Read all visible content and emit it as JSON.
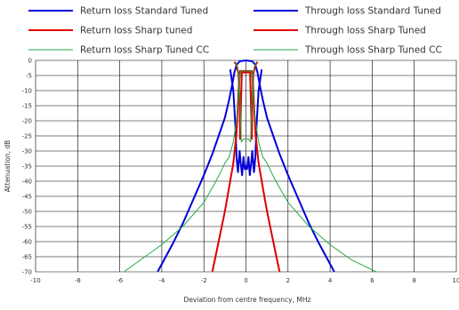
{
  "chart_data": {
    "type": "line",
    "xlabel": "Deviation from centre frequency, MHz",
    "ylabel": "Attenuation, dB",
    "xlim": [
      -10,
      10
    ],
    "ylim": [
      -70,
      0
    ],
    "xticks": [
      -10,
      -8,
      -6,
      -4,
      -2,
      0,
      2,
      4,
      6,
      8,
      10
    ],
    "xtick_labels": [
      "-10",
      "-8",
      "-6",
      "-4",
      "-2",
      "0",
      "2",
      "4",
      "6",
      "8",
      "10"
    ],
    "yticks": [
      0,
      -5,
      -10,
      -15,
      -20,
      -25,
      -30,
      -35,
      -40,
      -45,
      -50,
      -55,
      -60,
      -65,
      -70
    ],
    "ytick_labels": [
      "0",
      "-5",
      "-10",
      "-15",
      "-20",
      "-25",
      "-30",
      "-35",
      "-40",
      "-45",
      "-50",
      "-55",
      "-60",
      "-65",
      "-70"
    ],
    "grid": true,
    "legend_position": "top",
    "series": [
      {
        "name": "Return loss Standard Tuned",
        "color": "#0000dd",
        "width": 2,
        "x": [
          -0.75,
          -0.6,
          -0.5,
          -0.45,
          -0.38,
          -0.3,
          -0.25,
          -0.18,
          -0.12,
          -0.05,
          0,
          0.05,
          0.12,
          0.18,
          0.25,
          0.3,
          0.38,
          0.45,
          0.5,
          0.6,
          0.75
        ],
        "y": [
          -3,
          -10,
          -22,
          -32,
          -37,
          -30,
          -34,
          -38,
          -32,
          -36,
          -35,
          -36,
          -32,
          -38,
          -34,
          -30,
          -37,
          -32,
          -22,
          -10,
          -3
        ]
      },
      {
        "name": "Through loss Standard Tuned",
        "color": "#0000dd",
        "width": 2,
        "x": [
          -4.2,
          -3.5,
          -3,
          -2.5,
          -2,
          -1.6,
          -1.3,
          -1,
          -0.8,
          -0.65,
          -0.55,
          -0.45,
          -0.3,
          0,
          0.3,
          0.45,
          0.55,
          0.65,
          0.8,
          1,
          1.3,
          1.6,
          2,
          2.5,
          3,
          3.5,
          4.2
        ],
        "y": [
          -70,
          -61,
          -54,
          -46,
          -38,
          -31,
          -25,
          -19,
          -13,
          -8,
          -4,
          -1.5,
          -0.3,
          0,
          -0.3,
          -1.5,
          -4,
          -8,
          -13,
          -19,
          -25,
          -31,
          -38,
          -46,
          -54,
          -61,
          -70
        ]
      },
      {
        "name": "Return loss Sharp tuned",
        "color": "#dd0000",
        "width": 2,
        "x": [
          -0.55,
          -0.45,
          -0.35,
          -0.3,
          -0.28,
          -0.2,
          -0.1,
          0,
          0.1,
          0.2,
          0.28,
          0.3,
          0.35,
          0.45,
          0.55
        ],
        "y": [
          -0.5,
          -1.5,
          -4.5,
          -12,
          -26,
          -4,
          -4,
          -4,
          -4,
          -4,
          -26,
          -12,
          -4.5,
          -1.5,
          -0.5
        ]
      },
      {
        "name": "Through loss Sharp Tuned",
        "color": "#dd0000",
        "width": 2,
        "x": [
          -1.6,
          -1.3,
          -1,
          -0.8,
          -0.6,
          -0.45,
          -0.35,
          -0.3,
          -0.28,
          -0.2,
          -0.1,
          0,
          0.1,
          0.2,
          0.28,
          0.3,
          0.35,
          0.45,
          0.6,
          0.8,
          1,
          1.3,
          1.6
        ],
        "y": [
          -70,
          -60,
          -50,
          -42,
          -34,
          -24,
          -10,
          -5,
          -3.5,
          -3.5,
          -3.5,
          -3.5,
          -3.5,
          -3.5,
          -3.5,
          -5,
          -10,
          -24,
          -34,
          -42,
          -50,
          -60,
          -70
        ]
      },
      {
        "name": "Return loss Sharp Tuned CC",
        "color": "#22aa44",
        "width": 1,
        "x": [
          -0.5,
          -0.4,
          -0.32,
          -0.28,
          -0.22,
          -0.12,
          0,
          0.12,
          0.22,
          0.28,
          0.32,
          0.4,
          0.5
        ],
        "y": [
          -0.5,
          -2,
          -5,
          -13,
          -27,
          -26,
          -26,
          -26,
          -27,
          -13,
          -5,
          -2,
          -0.5
        ]
      },
      {
        "name": "Through loss Sharp Tuned CC",
        "color": "#22aa44",
        "width": 1,
        "x": [
          -5.8,
          -5,
          -4,
          -3,
          -2,
          -1.5,
          -1.2,
          -1,
          -0.8,
          -0.6,
          -0.45,
          -0.35,
          -0.3,
          -0.25,
          -0.15,
          0,
          0.15,
          0.25,
          0.3,
          0.35,
          0.45,
          0.6,
          0.8,
          1,
          1.2,
          1.5,
          2,
          3,
          4,
          5,
          6.2
        ],
        "y": [
          -70,
          -66,
          -61,
          -55,
          -47,
          -41,
          -37,
          -34,
          -32,
          -27,
          -20,
          -12,
          -6,
          -3.5,
          -3.5,
          -3.5,
          -3.5,
          -3.5,
          -6,
          -12,
          -20,
          -27,
          -32,
          -34,
          -37,
          -41,
          -47,
          -55,
          -61,
          -66,
          -70
        ]
      }
    ]
  }
}
